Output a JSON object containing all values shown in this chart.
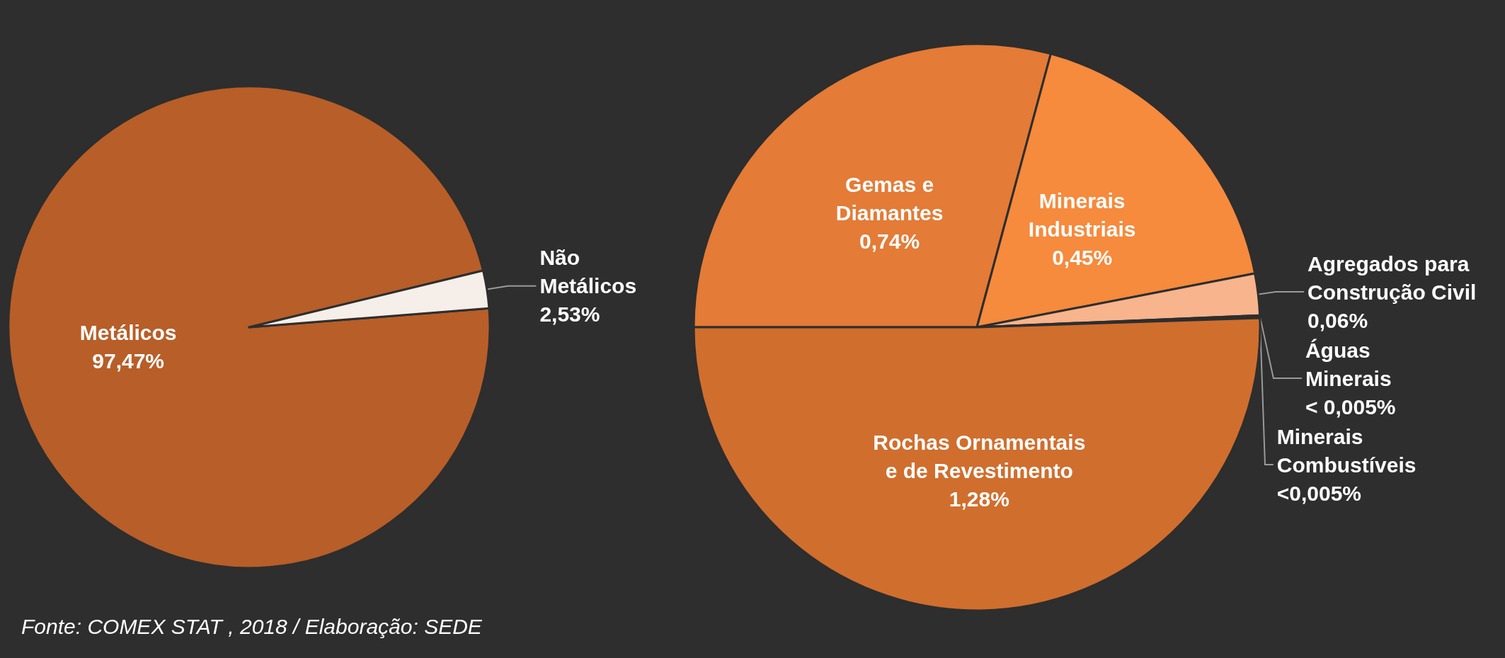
{
  "chart_data": [
    {
      "type": "pie",
      "categories": [
        "Metálicos",
        "Não\nMetálicos"
      ],
      "values": [
        97.47,
        2.53
      ],
      "value_labels": [
        "97,47%",
        "2,53%"
      ],
      "colors": [
        "#b85e28",
        "#f6efe9"
      ],
      "legend": false,
      "annotations": [
        "Fonte: COMEX STAT , 2018 / Elaboração: SEDE"
      ]
    },
    {
      "type": "pie",
      "categories": [
        "Gemas e\nDiamantes",
        "Minerais\nIndustriais",
        "Agregados para\nConstrução Civil",
        "Águas\nMinerais",
        "Minerais\nCombustíveis",
        "Rochas Ornamentais\ne de Revestimento"
      ],
      "values": [
        0.74,
        0.45,
        0.06,
        0.002,
        0.002,
        1.28
      ],
      "value_labels": [
        "0,74%",
        "0,45%",
        "0,06%",
        "< 0,005%",
        "<0,005%",
        "1,28%"
      ],
      "colors": [
        "#e47b36",
        "#f68a3d",
        "#f8b48c",
        "#f3a070",
        "#e08a55",
        "#d06e2e"
      ],
      "legend": false
    }
  ]
}
